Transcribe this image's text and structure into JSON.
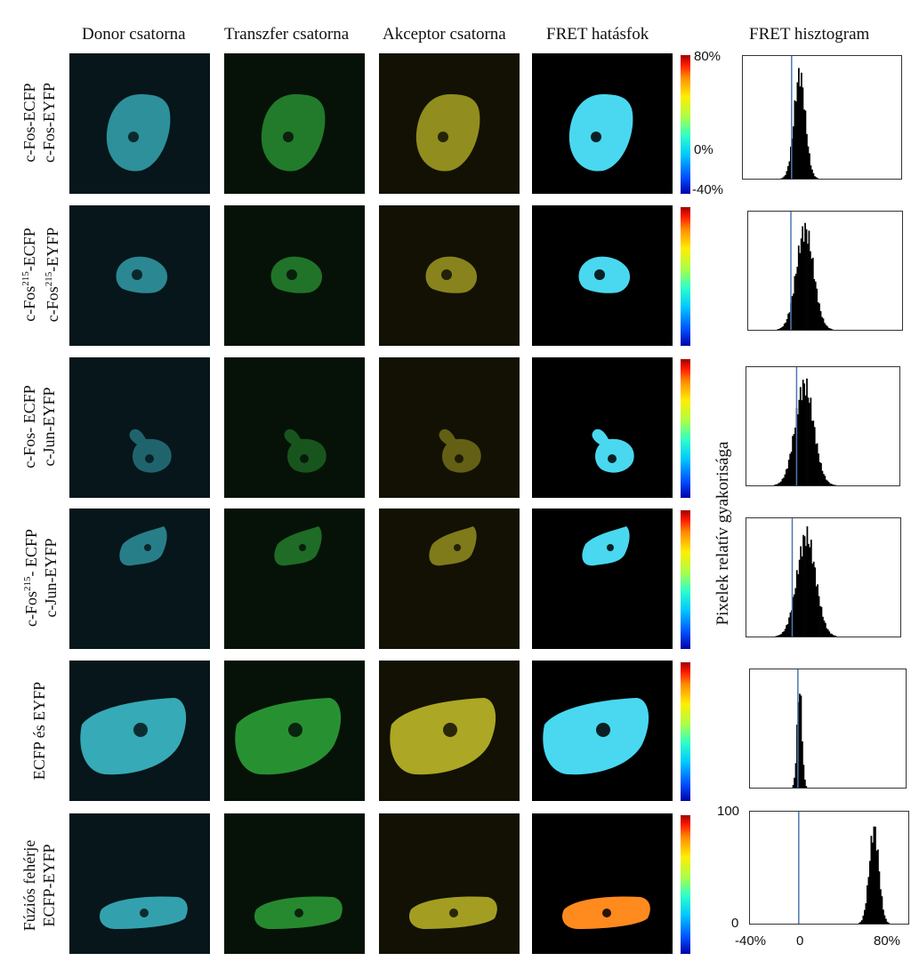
{
  "column_headers": {
    "donor": "Donor csatorna",
    "transfer": "Transzfer csatorna",
    "acceptor": "Akceptor csatorna",
    "fret_efficiency": "FRET hatásfok",
    "fret_histogram": "FRET hisztogram"
  },
  "rows": [
    {
      "line1": "c-Fos-ECFP",
      "line2": "c-Fos-EYFP"
    },
    {
      "line1_pre": "c-Fos",
      "line1_sup": "215",
      "line1_post": "-ECFP",
      "line2_pre": "c-Fos",
      "line2_sup": "215",
      "line2_post": "-EYFP"
    },
    {
      "line1": "c-Fos- ECFP",
      "line2": "c-Jun-EYFP"
    },
    {
      "line1_pre": "c-Fos",
      "line1_sup": "215",
      "line1_post": "- ECFP",
      "line2": "c-Jun-EYFP"
    },
    {
      "line1": "ECFP és EYFP"
    },
    {
      "line1": "Fúziós fehérje",
      "line2": "ECFP-EYFP"
    }
  ],
  "colorbar": {
    "top_label": "80%",
    "mid_label": "0%",
    "bottom_label": "-40%"
  },
  "histogram_ylabel": "Pixelek relatív gyakorisága",
  "histogram_axes": {
    "y_max_label": "100",
    "y_min_label": "0",
    "x_min_label": "-40%",
    "x_mid_label": "0",
    "x_max_label": "80%"
  },
  "colors": {
    "donor": "#3fc4d2",
    "transfer": "#2ea83a",
    "acceptor": "#c8c22a",
    "fret_cyan": "#49d8f0",
    "fret_orange": "#ff8a1e",
    "zero_line": "#4a78b4"
  }
}
